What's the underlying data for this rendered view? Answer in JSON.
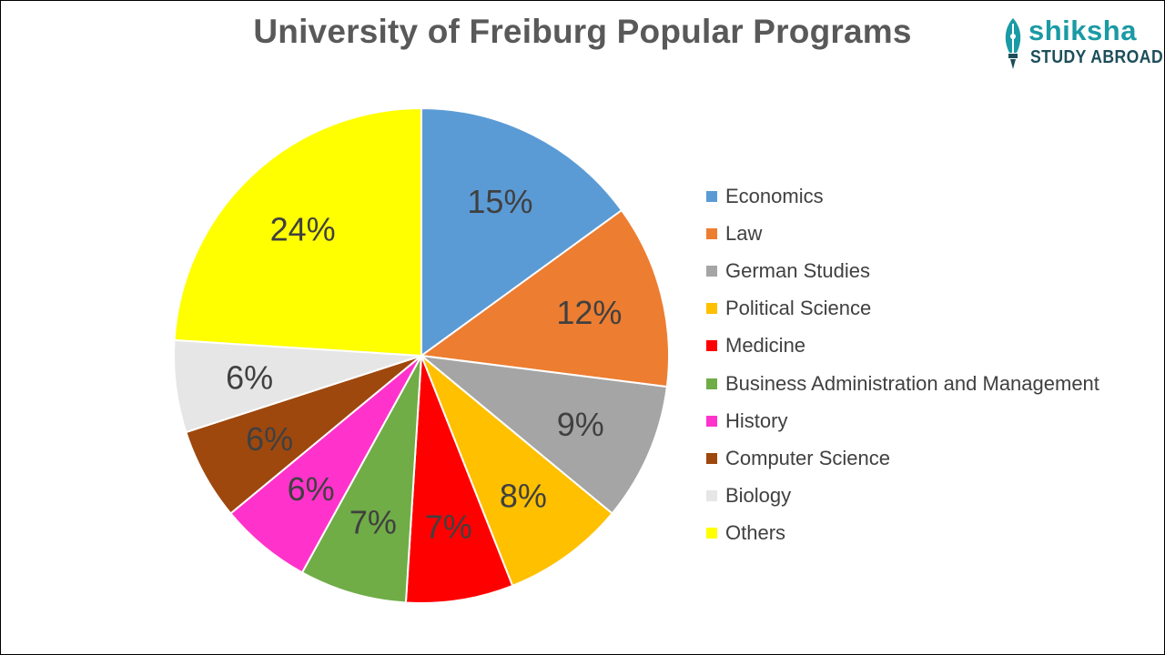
{
  "chart_data": {
    "type": "pie",
    "title": "University of Freiburg Popular Programs",
    "categories": [
      "Economics",
      "Law",
      "German Studies",
      "Political Science",
      "Medicine",
      "Business Administration and Management",
      "History",
      "Computer Science",
      "Biology",
      "Others"
    ],
    "values": [
      15,
      12,
      9,
      8,
      7,
      7,
      6,
      6,
      6,
      24
    ],
    "data_labels": [
      "15%",
      "12%",
      "9%",
      "8%",
      "7%",
      "7%",
      "6%",
      "6%",
      "6%",
      "24%"
    ],
    "colors": [
      "#5b9bd5",
      "#ed7d31",
      "#a5a5a5",
      "#ffc000",
      "#ff0000",
      "#70ad47",
      "#ff33cc",
      "#9e480e",
      "#e7e6e6",
      "#ffff00"
    ],
    "legend_position": "right"
  },
  "logo": {
    "word": "shiksha",
    "subtitle": "STUDY ABROAD",
    "colors": {
      "primary": "#1a9aa4",
      "dark": "#1d4e5a"
    },
    "icon": "quill-pen-icon"
  }
}
